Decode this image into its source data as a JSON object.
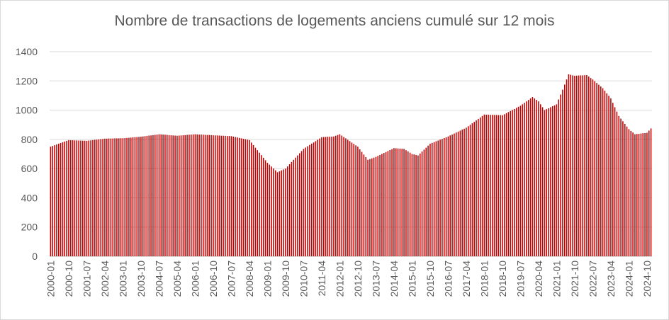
{
  "chart_data": {
    "type": "bar",
    "title": "Nombre de transactions de logements anciens cumulé sur 12 mois",
    "xlabel": "",
    "ylabel": "",
    "ylim": [
      0,
      1400
    ],
    "yticks": [
      0,
      200,
      400,
      600,
      800,
      1000,
      1200,
      1400
    ],
    "xtick_labels": [
      "2000-01",
      "2000-10",
      "2001-07",
      "2002-04",
      "2003-01",
      "2003-10",
      "2004-07",
      "2005-04",
      "2006-01",
      "2006-10",
      "2007-07",
      "2008-04",
      "2009-01",
      "2009-10",
      "2010-07",
      "2011-04",
      "2012-01",
      "2012-10",
      "2013-07",
      "2014-04",
      "2015-01",
      "2015-10",
      "2016-07",
      "2017-04",
      "2018-01",
      "2018-10",
      "2019-07",
      "2020-04",
      "2021-01",
      "2021-10",
      "2022-07",
      "2023-04",
      "2024-01",
      "2024-10"
    ],
    "series_color": "#c00000",
    "grid": true,
    "legend": "none",
    "anchors": [
      [
        "2000-01",
        750
      ],
      [
        "2000-10",
        795
      ],
      [
        "2001-07",
        790
      ],
      [
        "2002-04",
        805
      ],
      [
        "2003-01",
        808
      ],
      [
        "2003-10",
        818
      ],
      [
        "2004-07",
        835
      ],
      [
        "2005-04",
        825
      ],
      [
        "2006-01",
        835
      ],
      [
        "2006-10",
        828
      ],
      [
        "2007-07",
        822
      ],
      [
        "2008-04",
        795
      ],
      [
        "2009-01",
        640
      ],
      [
        "2009-06",
        575
      ],
      [
        "2009-10",
        600
      ],
      [
        "2010-07",
        735
      ],
      [
        "2011-04",
        815
      ],
      [
        "2011-10",
        820
      ],
      [
        "2012-01",
        835
      ],
      [
        "2012-10",
        750
      ],
      [
        "2013-03",
        660
      ],
      [
        "2013-07",
        680
      ],
      [
        "2014-04",
        740
      ],
      [
        "2014-09",
        735
      ],
      [
        "2015-01",
        700
      ],
      [
        "2015-04",
        690
      ],
      [
        "2015-10",
        770
      ],
      [
        "2016-07",
        820
      ],
      [
        "2017-04",
        880
      ],
      [
        "2018-01",
        970
      ],
      [
        "2018-10",
        965
      ],
      [
        "2019-07",
        1030
      ],
      [
        "2020-01",
        1090
      ],
      [
        "2020-04",
        1060
      ],
      [
        "2020-07",
        1000
      ],
      [
        "2021-01",
        1040
      ],
      [
        "2021-04",
        1140
      ],
      [
        "2021-07",
        1245
      ],
      [
        "2021-10",
        1235
      ],
      [
        "2022-04",
        1240
      ],
      [
        "2022-07",
        1210
      ],
      [
        "2022-12",
        1150
      ],
      [
        "2023-04",
        1080
      ],
      [
        "2023-08",
        960
      ],
      [
        "2024-01",
        870
      ],
      [
        "2024-04",
        835
      ],
      [
        "2024-10",
        845
      ],
      [
        "2024-12",
        875
      ]
    ]
  }
}
